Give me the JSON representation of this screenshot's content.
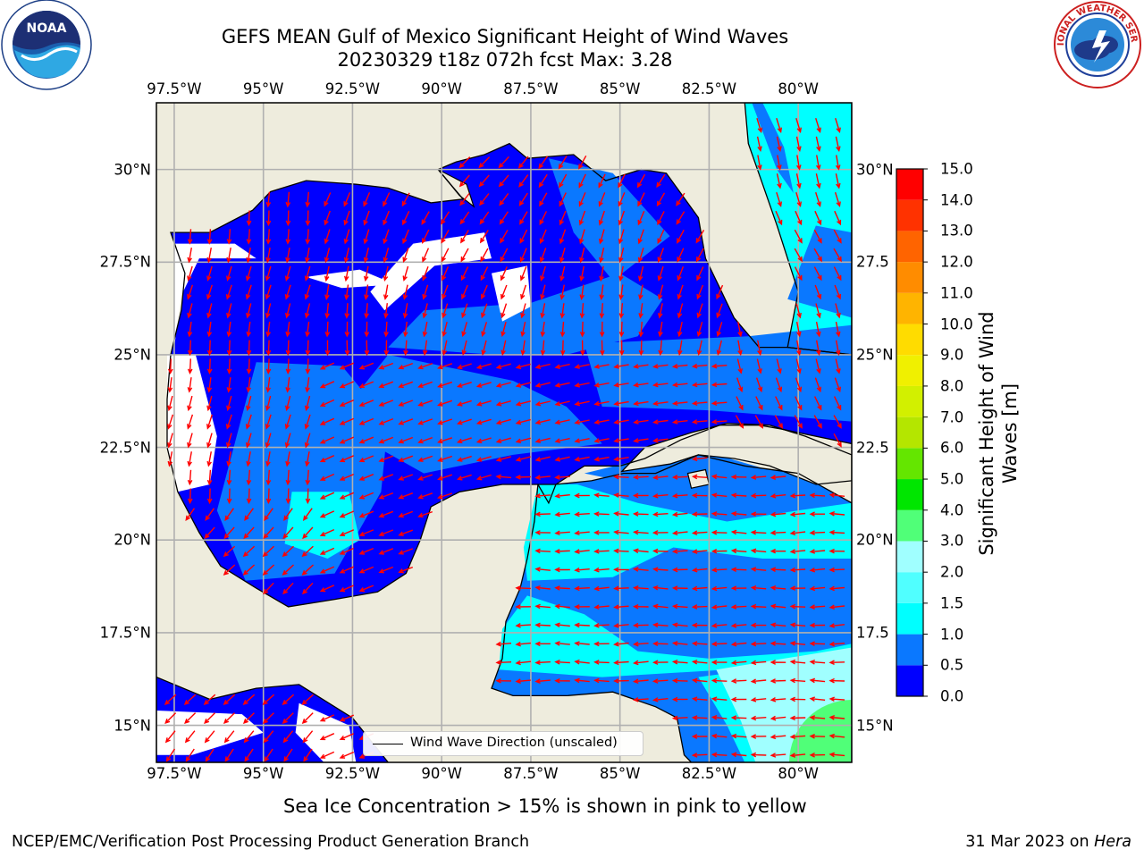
{
  "header": {
    "title_line1": "GEFS MEAN Gulf of Mexico Significant Height of Wind Waves",
    "title_line2": "20230329 t18z 072h fcst   Max: 3.28"
  },
  "logos": {
    "left": {
      "icon": "noaa-logo",
      "text": "NOAA",
      "ring_text": "NATIONAL OCEANIC AND ATMOSPHERIC ADMINISTRATION · U.S. DEPARTMENT OF COMMERCE"
    },
    "right": {
      "icon": "national-weather-service-logo",
      "ring_text": "NATIONAL WEATHER SERVICE"
    }
  },
  "map": {
    "lon_ticks": [
      "97.5°W",
      "95°W",
      "92.5°W",
      "90°W",
      "87.5°W",
      "85°W",
      "82.5°W",
      "80°W"
    ],
    "lat_ticks_left": [
      "30°N",
      "27.5°N",
      "25°N",
      "22.5°N",
      "20°N",
      "17.5°N",
      "15°N"
    ],
    "lat_ticks_right": [
      "30°N",
      "27.5",
      "25°N",
      "22.5",
      "20°N",
      "17.5",
      "15°N"
    ],
    "lon_range": [
      -98,
      -78.5
    ],
    "lat_range": [
      14,
      31.8
    ],
    "grid": true,
    "colors": {
      "land": "#eeecdd",
      "coast": "#000000",
      "arrows": "#ff0000",
      "gridlines": "#b0b0b0"
    }
  },
  "legend": {
    "label": "Wind Wave Direction (unscaled)",
    "placement": "lower-center"
  },
  "colorbar": {
    "label": "Significant Height of Wind Waves [m]",
    "ticks": [
      "15.0",
      "14.0",
      "13.0",
      "12.0",
      "11.0",
      "10.0",
      "9.0",
      "8.0",
      "7.0",
      "6.0",
      "5.0",
      "4.0",
      "3.0",
      "2.0",
      "1.5",
      "1.0",
      "0.5",
      "0.0"
    ],
    "bin_edges": [
      0,
      0.5,
      1,
      1.5,
      2,
      3,
      4,
      5,
      6,
      7,
      8,
      9,
      10,
      11,
      12,
      13,
      14,
      15
    ],
    "colors": [
      "#0000ff",
      "#0a78ff",
      "#00ffff",
      "#50ffff",
      "#a0ffff",
      "#50ff78",
      "#00e600",
      "#64e600",
      "#b4e600",
      "#d2f000",
      "#f0f000",
      "#ffdc00",
      "#ffb400",
      "#ff8c00",
      "#ff6400",
      "#ff3200",
      "#ff0000"
    ]
  },
  "notes": {
    "sea_ice": "Sea Ice Concentration > 15% is shown in pink to yellow"
  },
  "footer": {
    "left": "NCEP/EMC/Verification Post Processing Product Generation Branch",
    "date": "31 Mar 2023 on ",
    "machine": "Hera"
  }
}
